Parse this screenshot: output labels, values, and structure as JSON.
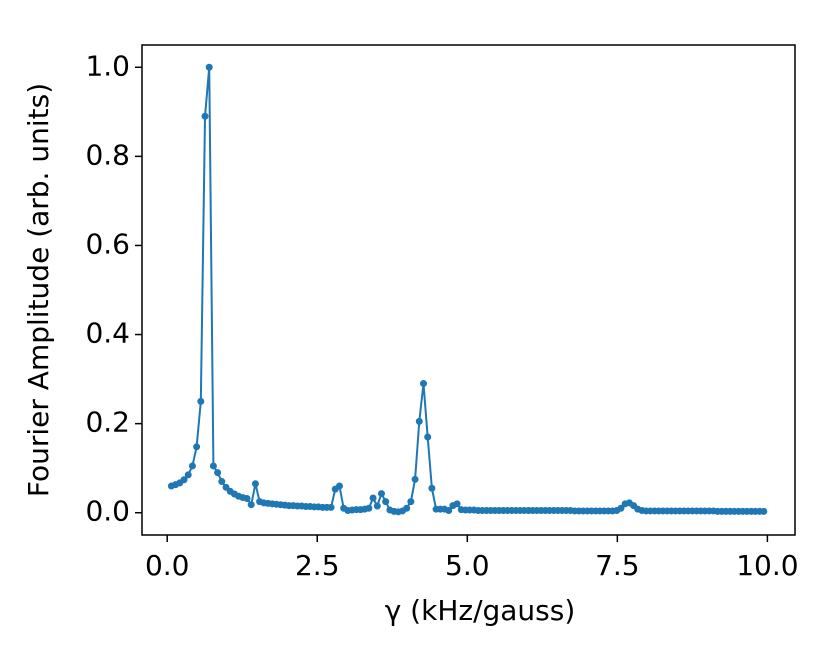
{
  "chart_data": {
    "type": "line",
    "xlabel": "γ (kHz/gauss)",
    "ylabel": "Fourier Amplitude (arb. units)",
    "xlim": [
      -0.42,
      10.46
    ],
    "ylim": [
      -0.05,
      1.05
    ],
    "xticks": [
      {
        "value": 0,
        "label": "0.0"
      },
      {
        "value": 2.5,
        "label": "2.5"
      },
      {
        "value": 5,
        "label": "5.0"
      },
      {
        "value": 7.5,
        "label": "7.5"
      },
      {
        "value": 10,
        "label": "10.0"
      }
    ],
    "yticks": [
      {
        "value": 0,
        "label": "0.0"
      },
      {
        "value": 0.2,
        "label": "0.2"
      },
      {
        "value": 0.4,
        "label": "0.4"
      },
      {
        "value": 0.6,
        "label": "0.6"
      },
      {
        "value": 0.8,
        "label": "0.8"
      },
      {
        "value": 1,
        "label": "1.0"
      }
    ],
    "grid": false,
    "x": [
      0.07,
      0.14,
      0.21,
      0.28,
      0.35,
      0.42,
      0.49,
      0.56,
      0.63,
      0.7,
      0.77,
      0.84,
      0.91,
      0.98,
      1.05,
      1.12,
      1.19,
      1.26,
      1.33,
      1.4,
      1.47,
      1.54,
      1.61,
      1.68,
      1.75,
      1.82,
      1.89,
      1.96,
      2.03,
      2.1,
      2.17,
      2.24,
      2.31,
      2.38,
      2.45,
      2.52,
      2.59,
      2.66,
      2.73,
      2.8,
      2.87,
      2.94,
      3.01,
      3.08,
      3.15,
      3.22,
      3.29,
      3.36,
      3.43,
      3.5,
      3.57,
      3.64,
      3.71,
      3.78,
      3.85,
      3.92,
      3.99,
      4.06,
      4.13,
      4.2,
      4.27,
      4.34,
      4.41,
      4.48,
      4.55,
      4.62,
      4.69,
      4.76,
      4.83,
      4.9,
      4.97,
      5.04,
      5.11,
      5.18,
      5.25,
      5.32,
      5.39,
      5.46,
      5.53,
      5.6,
      5.67,
      5.74,
      5.81,
      5.88,
      5.95,
      6.02,
      6.09,
      6.16,
      6.23,
      6.3,
      6.37,
      6.44,
      6.51,
      6.58,
      6.65,
      6.72,
      6.79,
      6.86,
      6.93,
      7.0,
      7.07,
      7.14,
      7.21,
      7.28,
      7.35,
      7.42,
      7.49,
      7.56,
      7.63,
      7.7,
      7.77,
      7.84,
      7.91,
      7.98,
      8.05,
      8.12,
      8.19,
      8.26,
      8.33,
      8.4,
      8.47,
      8.54,
      8.61,
      8.68,
      8.75,
      8.82,
      8.89,
      8.96,
      9.03,
      9.1,
      9.17,
      9.24,
      9.31,
      9.38,
      9.45,
      9.52,
      9.59,
      9.66,
      9.73,
      9.8,
      9.87,
      9.94
    ],
    "series": [
      {
        "color": "#1f77b4",
        "values": [
          0.06,
          0.063,
          0.067,
          0.074,
          0.085,
          0.105,
          0.148,
          0.25,
          0.89,
          1.0,
          0.105,
          0.09,
          0.07,
          0.057,
          0.048,
          0.042,
          0.037,
          0.034,
          0.032,
          0.018,
          0.065,
          0.025,
          0.022,
          0.021,
          0.02,
          0.019,
          0.018,
          0.017,
          0.016,
          0.016,
          0.015,
          0.015,
          0.014,
          0.014,
          0.013,
          0.013,
          0.012,
          0.012,
          0.012,
          0.053,
          0.06,
          0.01,
          0.005,
          0.006,
          0.007,
          0.007,
          0.008,
          0.01,
          0.033,
          0.015,
          0.043,
          0.025,
          0.006,
          0.003,
          0.002,
          0.004,
          0.01,
          0.025,
          0.075,
          0.205,
          0.29,
          0.17,
          0.055,
          0.008,
          0.008,
          0.008,
          0.005,
          0.016,
          0.02,
          0.007,
          0.006,
          0.006,
          0.006,
          0.005,
          0.005,
          0.005,
          0.005,
          0.005,
          0.005,
          0.005,
          0.005,
          0.005,
          0.005,
          0.005,
          0.005,
          0.005,
          0.005,
          0.005,
          0.005,
          0.005,
          0.005,
          0.005,
          0.005,
          0.005,
          0.005,
          0.005,
          0.004,
          0.004,
          0.004,
          0.004,
          0.004,
          0.004,
          0.004,
          0.004,
          0.004,
          0.004,
          0.005,
          0.01,
          0.02,
          0.022,
          0.016,
          0.008,
          0.005,
          0.004,
          0.004,
          0.004,
          0.004,
          0.004,
          0.004,
          0.004,
          0.004,
          0.004,
          0.004,
          0.004,
          0.004,
          0.004,
          0.004,
          0.004,
          0.004,
          0.004,
          0.003,
          0.003,
          0.003,
          0.003,
          0.003,
          0.003,
          0.003,
          0.003,
          0.003,
          0.003,
          0.003,
          0.003
        ]
      }
    ]
  }
}
